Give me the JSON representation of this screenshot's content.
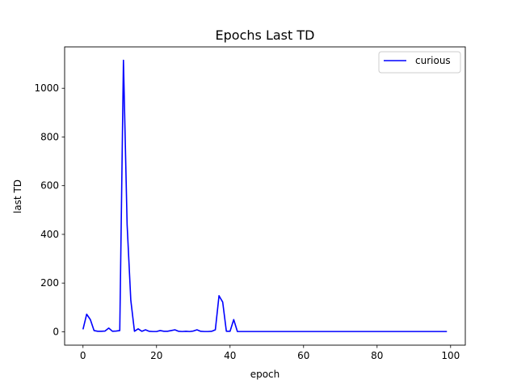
{
  "chart_data": {
    "type": "line",
    "title": "Epochs Last TD",
    "xlabel": "epoch",
    "ylabel": "last TD",
    "xlim": [
      -5,
      104
    ],
    "ylim": [
      -55,
      1170
    ],
    "xticks": [
      0,
      20,
      40,
      60,
      80,
      100
    ],
    "yticks": [
      0,
      200,
      400,
      600,
      800,
      1000
    ],
    "grid": false,
    "legend_position": "top-right",
    "series": [
      {
        "name": "curious",
        "color": "#0000ff",
        "x": [
          0,
          1,
          2,
          3,
          4,
          5,
          6,
          7,
          8,
          9,
          10,
          11,
          12,
          13,
          14,
          15,
          16,
          17,
          18,
          19,
          20,
          21,
          22,
          23,
          24,
          25,
          26,
          27,
          28,
          29,
          30,
          31,
          32,
          33,
          34,
          35,
          36,
          37,
          38,
          39,
          40,
          41,
          42,
          43,
          44,
          45,
          46,
          47,
          48,
          49,
          50,
          51,
          52,
          53,
          54,
          55,
          56,
          57,
          58,
          59,
          60,
          61,
          62,
          63,
          64,
          65,
          66,
          67,
          68,
          69,
          70,
          71,
          72,
          73,
          74,
          75,
          76,
          77,
          78,
          79,
          80,
          81,
          82,
          83,
          84,
          85,
          86,
          87,
          88,
          89,
          90,
          91,
          92,
          93,
          94,
          95,
          96,
          97,
          98,
          99
        ],
        "values": [
          10,
          72,
          50,
          5,
          2,
          2,
          3,
          15,
          2,
          3,
          5,
          1115,
          440,
          130,
          2,
          12,
          2,
          8,
          2,
          1,
          1,
          5,
          2,
          2,
          5,
          8,
          2,
          1,
          2,
          1,
          3,
          8,
          2,
          1,
          1,
          2,
          8,
          148,
          122,
          2,
          2,
          50,
          1,
          1,
          1,
          1,
          1,
          1,
          1,
          1,
          1,
          1,
          1,
          1,
          1,
          1,
          1,
          1,
          1,
          1,
          1,
          1,
          1,
          1,
          1,
          1,
          1,
          1,
          1,
          1,
          1,
          1,
          1,
          1,
          1,
          1,
          1,
          1,
          1,
          1,
          1,
          1,
          1,
          1,
          1,
          1,
          1,
          1,
          1,
          1,
          1,
          1,
          1,
          1,
          1,
          1,
          1,
          1,
          1,
          1
        ]
      }
    ]
  }
}
